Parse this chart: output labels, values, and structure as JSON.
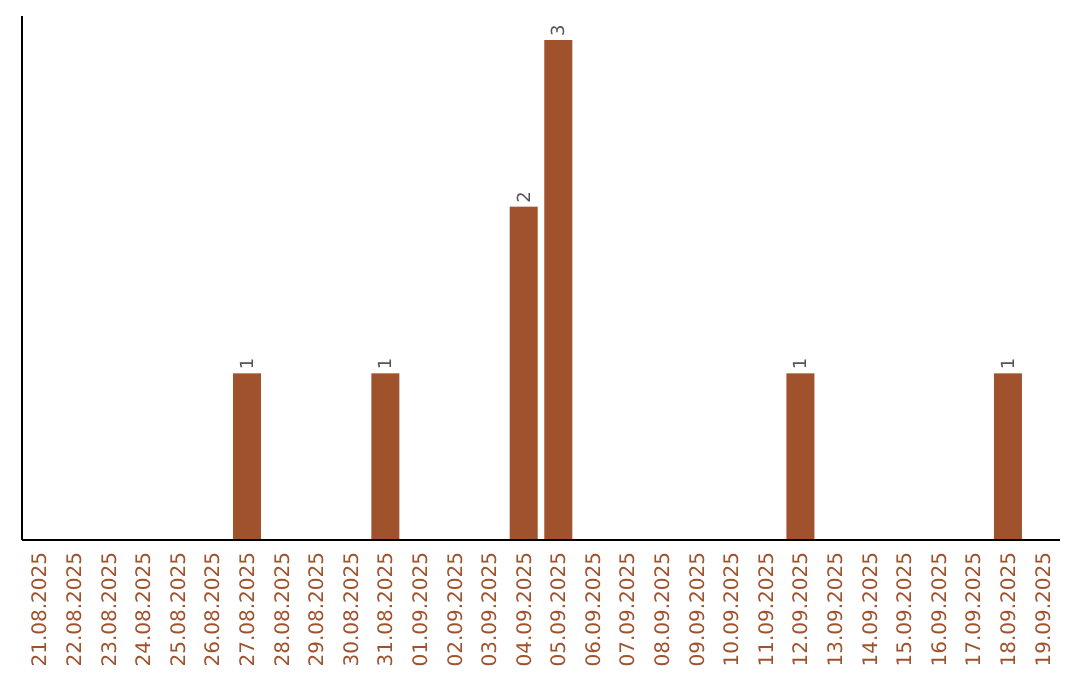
{
  "chart_data": {
    "type": "bar",
    "categories": [
      "21.08.2025",
      "22.08.2025",
      "23.08.2025",
      "24.08.2025",
      "25.08.2025",
      "26.08.2025",
      "27.08.2025",
      "28.08.2025",
      "29.08.2025",
      "30.08.2025",
      "31.08.2025",
      "01.09.2025",
      "02.09.2025",
      "03.09.2025",
      "04.09.2025",
      "05.09.2025",
      "06.09.2025",
      "07.09.2025",
      "08.09.2025",
      "09.09.2025",
      "10.09.2025",
      "11.09.2025",
      "12.09.2025",
      "13.09.2025",
      "14.09.2025",
      "15.09.2025",
      "16.09.2025",
      "17.09.2025",
      "18.09.2025",
      "19.09.2025"
    ],
    "values": [
      0,
      0,
      0,
      0,
      0,
      0,
      1,
      0,
      0,
      0,
      1,
      0,
      0,
      0,
      2,
      3,
      0,
      0,
      0,
      0,
      0,
      0,
      1,
      0,
      0,
      0,
      0,
      0,
      1,
      0
    ],
    "value_labels": [
      null,
      null,
      null,
      null,
      null,
      null,
      "1",
      null,
      null,
      null,
      "1",
      null,
      null,
      null,
      "2",
      "3",
      null,
      null,
      null,
      null,
      null,
      null,
      "1",
      null,
      null,
      null,
      null,
      null,
      "1",
      null
    ],
    "color": "#a0522d",
    "ylim": [
      0,
      3
    ],
    "tick_labels": "x",
    "grid": false
  }
}
